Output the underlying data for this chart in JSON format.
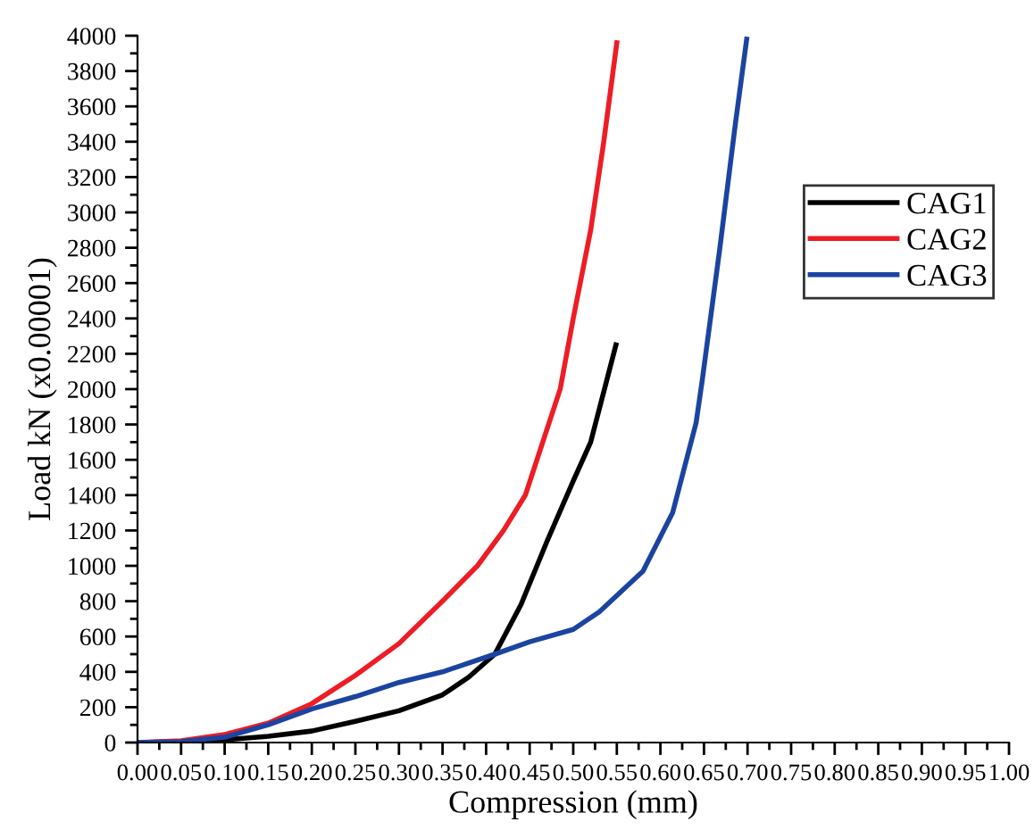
{
  "chart_data": {
    "type": "line",
    "xlabel": "Compression (mm)",
    "ylabel": "Load kN (x0.00001)",
    "xlim": [
      0,
      1.0
    ],
    "ylim": [
      0,
      4000
    ],
    "xticks": [
      {
        "value": 0,
        "label": "0.00"
      },
      {
        "value": 0.05,
        "label": "0.05"
      },
      {
        "value": 0.1,
        "label": "0.10"
      },
      {
        "value": 0.15,
        "label": "0.15"
      },
      {
        "value": 0.2,
        "label": "0.20"
      },
      {
        "value": 0.25,
        "label": "0.25"
      },
      {
        "value": 0.3,
        "label": "0.30"
      },
      {
        "value": 0.35,
        "label": "0.35"
      },
      {
        "value": 0.4,
        "label": "0.40"
      },
      {
        "value": 0.45,
        "label": "0.45"
      },
      {
        "value": 0.5,
        "label": "0.50"
      },
      {
        "value": 0.55,
        "label": "0.55"
      },
      {
        "value": 0.6,
        "label": "0.60"
      },
      {
        "value": 0.65,
        "label": "0.65"
      },
      {
        "value": 0.7,
        "label": "0.70"
      },
      {
        "value": 0.75,
        "label": "0.75"
      },
      {
        "value": 0.8,
        "label": "0.80"
      },
      {
        "value": 0.85,
        "label": "0.85"
      },
      {
        "value": 0.9,
        "label": "0.90"
      },
      {
        "value": 0.95,
        "label": "0.95"
      },
      {
        "value": 1.0,
        "label": "1.00"
      }
    ],
    "yticks": [
      0,
      200,
      400,
      600,
      800,
      1000,
      1200,
      1400,
      1600,
      1800,
      2000,
      2200,
      2400,
      2600,
      2800,
      3000,
      3200,
      3400,
      3600,
      3800,
      4000
    ],
    "grid": false,
    "legend": "top right",
    "marker": "none",
    "line_style": "solid",
    "series": [
      {
        "name": "CAG1",
        "color": "#000000",
        "x": [
          0,
          0.05,
          0.1,
          0.15,
          0.2,
          0.25,
          0.3,
          0.35,
          0.38,
          0.41,
          0.44,
          0.47,
          0.5,
          0.52,
          0.549
        ],
        "values": [
          0,
          5,
          15,
          35,
          65,
          120,
          180,
          270,
          370,
          500,
          780,
          1140,
          1480,
          1700,
          2250
        ]
      },
      {
        "name": "CAG2",
        "color": "#ee1c25",
        "x": [
          0,
          0.05,
          0.1,
          0.15,
          0.2,
          0.25,
          0.3,
          0.35,
          0.39,
          0.42,
          0.445,
          0.465,
          0.485,
          0.5,
          0.52,
          0.535,
          0.55
        ],
        "values": [
          0,
          10,
          45,
          110,
          220,
          380,
          560,
          800,
          1000,
          1200,
          1400,
          1700,
          2000,
          2400,
          2900,
          3400,
          3960
        ]
      },
      {
        "name": "CAG3",
        "color": "#1b44a0",
        "x": [
          0,
          0.05,
          0.1,
          0.15,
          0.2,
          0.25,
          0.3,
          0.35,
          0.41,
          0.45,
          0.5,
          0.53,
          0.58,
          0.614,
          0.641,
          0.648,
          0.668,
          0.686,
          0.699
        ],
        "values": [
          0,
          5,
          30,
          100,
          190,
          260,
          340,
          400,
          500,
          570,
          640,
          740,
          970,
          1300,
          1810,
          2050,
          2790,
          3500,
          3980
        ]
      }
    ]
  }
}
